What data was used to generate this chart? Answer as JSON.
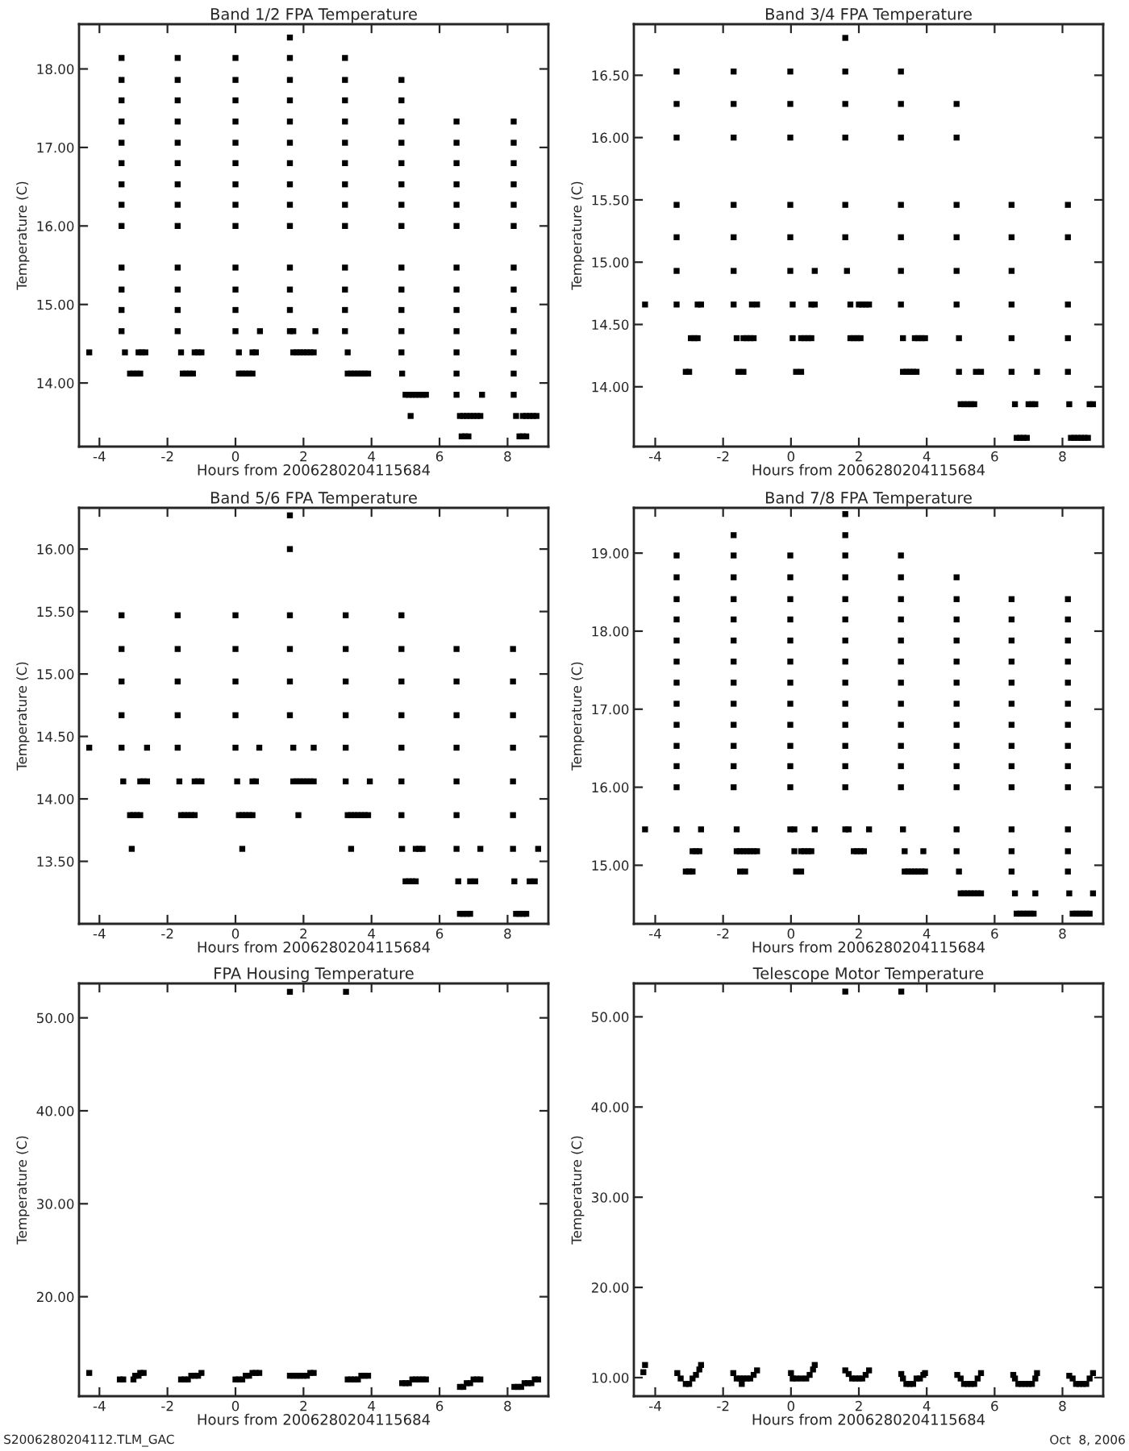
{
  "chart_data": [
    {
      "type": "scatter",
      "title": "Band 1/2 FPA Temperature",
      "xlabel": "Hours from 2006280204115684",
      "ylabel": "Temperature (C)",
      "marker": "square",
      "xlim": [
        -4.6,
        9.2
      ],
      "ylim": [
        13.19,
        18.57
      ],
      "xticks": [
        -4,
        -2,
        0,
        2,
        4,
        6,
        8
      ],
      "yticks": [
        {
          "value": 14,
          "label": "14.00"
        },
        {
          "value": 15,
          "label": "15.00"
        },
        {
          "value": 16,
          "label": "16.00"
        },
        {
          "value": 17,
          "label": "17.00"
        },
        {
          "value": 18,
          "label": "18.00"
        }
      ],
      "series": [
        {
          "color": "#000000",
          "x": [
            -4.3
          ],
          "values": [
            14.39
          ]
        },
        {
          "color": "#000000",
          "x": [
            -3.35,
            -3.35,
            -3.35,
            -3.35,
            -3.35,
            -3.35,
            -3.35,
            -3.35,
            -3.35,
            -3.35,
            -3.35,
            -3.35,
            -3.35,
            -3.25,
            -3.1,
            -3.0,
            -2.9,
            -2.8,
            -2.85,
            -2.75,
            -2.65
          ],
          "values": [
            18.14,
            17.86,
            17.6,
            17.33,
            17.06,
            16.8,
            16.53,
            16.27,
            16.0,
            15.47,
            15.19,
            14.93,
            14.66,
            14.39,
            14.12,
            14.12,
            14.12,
            14.12,
            14.39,
            14.39,
            14.39
          ]
        },
        {
          "color": "#000000",
          "x": [
            -1.7,
            -1.7,
            -1.7,
            -1.7,
            -1.7,
            -1.7,
            -1.7,
            -1.7,
            -1.7,
            -1.7,
            -1.7,
            -1.7,
            -1.7,
            -1.6,
            -1.55,
            -1.45,
            -1.35,
            -1.25,
            -1.2,
            -1.1,
            -1.0
          ],
          "values": [
            18.14,
            17.86,
            17.6,
            17.33,
            17.06,
            16.8,
            16.53,
            16.27,
            16.0,
            15.47,
            15.19,
            14.93,
            14.66,
            14.39,
            14.12,
            14.12,
            14.12,
            14.12,
            14.39,
            14.39,
            14.39
          ]
        },
        {
          "color": "#000000",
          "x": [
            0,
            0,
            0,
            0,
            0,
            0,
            0,
            0,
            0,
            0,
            0,
            0,
            0,
            0.1,
            0.1,
            0.2,
            0.3,
            0.4,
            0.5,
            0.5,
            0.6,
            0.72
          ],
          "values": [
            18.14,
            17.86,
            17.6,
            17.33,
            17.06,
            16.8,
            16.53,
            16.27,
            16.0,
            15.47,
            15.19,
            14.93,
            14.66,
            14.39,
            14.12,
            14.12,
            14.12,
            14.12,
            14.12,
            14.39,
            14.39,
            14.66
          ]
        },
        {
          "color": "#000000",
          "x": [
            1.6,
            1.6,
            1.6,
            1.6,
            1.6,
            1.6,
            1.6,
            1.6,
            1.6,
            1.6,
            1.6,
            1.6,
            1.6,
            1.6,
            1.7,
            1.7,
            1.8,
            1.9,
            2.0,
            2.1,
            2.2,
            2.3,
            2.35
          ],
          "values": [
            18.4,
            18.14,
            17.86,
            17.6,
            17.33,
            17.06,
            16.8,
            16.53,
            16.27,
            16.0,
            15.47,
            15.19,
            14.93,
            14.66,
            14.66,
            14.39,
            14.39,
            14.39,
            14.39,
            14.39,
            14.39,
            14.39,
            14.66
          ]
        },
        {
          "color": "#000000",
          "x": [
            3.22,
            3.22,
            3.22,
            3.22,
            3.22,
            3.22,
            3.22,
            3.22,
            3.22,
            3.22,
            3.22,
            3.22,
            3.22,
            3.3,
            3.3,
            3.4,
            3.5,
            3.6,
            3.7,
            3.8,
            3.9
          ],
          "values": [
            18.14,
            17.86,
            17.6,
            17.33,
            17.06,
            16.8,
            16.53,
            16.27,
            16.0,
            15.47,
            15.19,
            14.93,
            14.66,
            14.39,
            14.12,
            14.12,
            14.12,
            14.12,
            14.12,
            14.12,
            14.12
          ]
        },
        {
          "color": "#000000",
          "x": [
            4.88,
            4.88,
            4.88,
            4.88,
            4.88,
            4.88,
            4.88,
            4.88,
            4.88,
            4.88,
            4.88,
            4.88,
            4.88,
            4.9,
            5.0,
            5.1,
            5.2,
            5.3,
            5.4,
            5.5,
            5.6,
            5.15
          ],
          "values": [
            17.86,
            17.6,
            17.33,
            17.06,
            16.8,
            16.53,
            16.27,
            16.0,
            15.47,
            15.19,
            14.93,
            14.66,
            14.39,
            14.12,
            13.85,
            13.85,
            13.85,
            13.85,
            13.85,
            13.85,
            13.85,
            13.58
          ]
        },
        {
          "color": "#000000",
          "x": [
            6.5,
            6.5,
            6.5,
            6.5,
            6.5,
            6.5,
            6.5,
            6.5,
            6.5,
            6.5,
            6.5,
            6.5,
            6.5,
            6.6,
            6.7,
            6.8,
            6.9,
            7.0,
            7.1,
            7.2,
            7.25,
            6.65,
            6.75,
            6.85
          ],
          "values": [
            17.33,
            17.06,
            16.8,
            16.53,
            16.27,
            16.0,
            15.47,
            15.19,
            14.93,
            14.66,
            14.39,
            14.12,
            13.85,
            13.58,
            13.58,
            13.58,
            13.58,
            13.58,
            13.58,
            13.58,
            13.85,
            13.32,
            13.32,
            13.32
          ]
        },
        {
          "color": "#000000",
          "x": [
            8.18,
            8.18,
            8.18,
            8.18,
            8.18,
            8.18,
            8.18,
            8.18,
            8.18,
            8.18,
            8.18,
            8.18,
            8.18,
            8.25,
            8.45,
            8.55,
            8.65,
            8.75,
            8.85,
            8.35,
            8.45,
            8.55
          ],
          "values": [
            17.33,
            17.06,
            16.8,
            16.53,
            16.27,
            16.0,
            15.47,
            15.19,
            14.93,
            14.66,
            14.39,
            14.12,
            13.85,
            13.58,
            13.58,
            13.58,
            13.58,
            13.58,
            13.58,
            13.32,
            13.32,
            13.32
          ]
        }
      ]
    },
    {
      "type": "scatter",
      "title": "Band 3/4 FPA Temperature",
      "xlabel": "Hours from 2006280204115684",
      "ylabel": "Temperature (C)",
      "marker": "square",
      "xlim": [
        -4.63,
        9.2
      ],
      "ylim": [
        13.52,
        16.91
      ],
      "xticks": [
        -4,
        -2,
        0,
        2,
        4,
        6,
        8
      ],
      "yticks": [
        {
          "value": 14,
          "label": "14.00"
        },
        {
          "value": 14.5,
          "label": "14.50"
        },
        {
          "value": 15,
          "label": "15.00"
        },
        {
          "value": 15.5,
          "label": "15.50"
        },
        {
          "value": 16,
          "label": "16.00"
        },
        {
          "value": 16.5,
          "label": "16.50"
        }
      ],
      "series": [
        {
          "color": "#000000",
          "x": [
            -4.3
          ],
          "values": [
            14.66
          ]
        },
        {
          "color": "#000000",
          "x": [
            -3.37,
            -3.37,
            -3.37,
            -3.37,
            -3.37,
            -3.37,
            -3.37,
            -2.95,
            -2.85,
            -2.75,
            -3.1,
            -3.0,
            -2.75,
            -2.65
          ],
          "values": [
            16.53,
            16.27,
            16.0,
            15.46,
            15.2,
            14.93,
            14.66,
            14.39,
            14.39,
            14.39,
            14.12,
            14.12,
            14.66,
            14.66
          ]
        },
        {
          "color": "#000000",
          "x": [
            -1.69,
            -1.69,
            -1.69,
            -1.69,
            -1.69,
            -1.69,
            -1.69,
            -1.6,
            -1.4,
            -1.3,
            -1.2,
            -1.1,
            -1.55,
            -1.4,
            -1.15,
            -1.0
          ],
          "values": [
            16.53,
            16.27,
            16.0,
            15.46,
            15.2,
            14.93,
            14.66,
            14.39,
            14.39,
            14.39,
            14.39,
            14.39,
            14.12,
            14.12,
            14.66,
            14.66
          ]
        },
        {
          "color": "#000000",
          "x": [
            -0.02,
            -0.02,
            -0.02,
            -0.02,
            -0.02,
            -0.02,
            0.05,
            0.05,
            0.3,
            0.4,
            0.5,
            0.6,
            0.15,
            0.3,
            0.6,
            0.7,
            0.7
          ],
          "values": [
            16.53,
            16.27,
            16.0,
            15.46,
            15.2,
            14.93,
            14.66,
            14.39,
            14.39,
            14.39,
            14.39,
            14.39,
            14.12,
            14.12,
            14.66,
            14.66,
            14.93
          ]
        },
        {
          "color": "#000000",
          "x": [
            1.6,
            1.6,
            1.6,
            1.6,
            1.6,
            1.6,
            1.65,
            1.75,
            1.75,
            1.85,
            1.95,
            2.05,
            2.0,
            2.1,
            2.2,
            2.3
          ],
          "values": [
            16.8,
            16.53,
            16.27,
            16.0,
            15.46,
            15.2,
            14.93,
            14.66,
            14.39,
            14.39,
            14.39,
            14.39,
            14.66,
            14.66,
            14.66,
            14.66
          ]
        },
        {
          "color": "#000000",
          "x": [
            3.24,
            3.24,
            3.24,
            3.24,
            3.24,
            3.24,
            3.24,
            3.3,
            3.3,
            3.4,
            3.5,
            3.6,
            3.7,
            3.65,
            3.75,
            3.85,
            3.95
          ],
          "values": [
            16.53,
            16.27,
            16.0,
            15.46,
            15.2,
            14.93,
            14.66,
            14.39,
            14.12,
            14.12,
            14.12,
            14.12,
            14.12,
            14.39,
            14.39,
            14.39,
            14.39
          ]
        },
        {
          "color": "#000000",
          "x": [
            4.88,
            4.88,
            4.88,
            4.88,
            4.88,
            4.88,
            4.95,
            4.95,
            5.0,
            5.1,
            5.2,
            5.3,
            5.4,
            5.45,
            5.6
          ],
          "values": [
            16.27,
            16.0,
            15.46,
            15.2,
            14.93,
            14.66,
            14.39,
            14.12,
            13.86,
            13.86,
            13.86,
            13.86,
            13.86,
            14.12,
            14.12
          ]
        },
        {
          "color": "#000000",
          "x": [
            6.5,
            6.5,
            6.5,
            6.5,
            6.5,
            6.5,
            6.6,
            6.65,
            6.75,
            6.85,
            6.95,
            7.0,
            7.1,
            7.2,
            7.25
          ],
          "values": [
            15.46,
            15.2,
            14.93,
            14.66,
            14.39,
            14.12,
            13.86,
            13.59,
            13.59,
            13.59,
            13.59,
            13.86,
            13.86,
            13.86,
            14.12
          ]
        },
        {
          "color": "#000000",
          "x": [
            8.16,
            8.16,
            8.16,
            8.16,
            8.16,
            8.2,
            8.25,
            8.35,
            8.45,
            8.55,
            8.65,
            8.75,
            8.8,
            8.9
          ],
          "values": [
            15.46,
            15.2,
            14.66,
            14.39,
            14.12,
            13.86,
            13.59,
            13.59,
            13.59,
            13.59,
            13.59,
            13.59,
            13.86,
            13.86
          ]
        }
      ]
    },
    {
      "type": "scatter",
      "title": "Band 5/6 FPA Temperature",
      "xlabel": "Hours from 2006280204115684",
      "ylabel": "Temperature (C)",
      "marker": "square",
      "xlim": [
        -4.6,
        9.2
      ],
      "ylim": [
        13.0,
        16.33
      ],
      "xticks": [
        -4,
        -2,
        0,
        2,
        4,
        6,
        8
      ],
      "yticks": [
        {
          "value": 13.5,
          "label": "13.50"
        },
        {
          "value": 14,
          "label": "14.00"
        },
        {
          "value": 14.5,
          "label": "14.50"
        },
        {
          "value": 15,
          "label": "15.00"
        },
        {
          "value": 15.5,
          "label": "15.50"
        },
        {
          "value": 16,
          "label": "16.00"
        }
      ],
      "series": [
        {
          "color": "#000000",
          "x": [
            -4.3
          ],
          "values": [
            14.41
          ]
        },
        {
          "color": "#000000",
          "x": [
            -3.35,
            -3.35,
            -3.35,
            -3.35,
            -3.35,
            -3.3,
            -2.8,
            -2.7,
            -2.6,
            -2.6,
            -3.1,
            -3.0,
            -2.9,
            -2.8,
            -3.05
          ],
          "values": [
            15.47,
            15.2,
            14.94,
            14.67,
            14.41,
            14.14,
            14.14,
            14.14,
            14.14,
            14.41,
            13.87,
            13.87,
            13.87,
            13.87,
            13.6
          ]
        },
        {
          "color": "#000000",
          "x": [
            -1.7,
            -1.7,
            -1.7,
            -1.7,
            -1.7,
            -1.65,
            -1.6,
            -1.5,
            -1.4,
            -1.3,
            -1.2,
            -1.2,
            -1.1,
            -1.0
          ],
          "values": [
            15.47,
            15.2,
            14.94,
            14.67,
            14.41,
            14.14,
            13.87,
            13.87,
            13.87,
            13.87,
            13.87,
            14.14,
            14.14,
            14.14
          ]
        },
        {
          "color": "#000000",
          "x": [
            0,
            0,
            0,
            0,
            0,
            0.05,
            0.1,
            0.2,
            0.3,
            0.4,
            0.5,
            0.5,
            0.6,
            0.2,
            0.7
          ],
          "values": [
            15.47,
            15.2,
            14.94,
            14.67,
            14.41,
            14.14,
            13.87,
            13.87,
            13.87,
            13.87,
            13.87,
            14.14,
            14.14,
            13.6,
            14.41
          ]
        },
        {
          "color": "#000000",
          "x": [
            1.6,
            1.6,
            1.6,
            1.6,
            1.6,
            1.6,
            1.7,
            1.7,
            1.8,
            1.9,
            2.0,
            2.1,
            2.2,
            2.3,
            1.85,
            2.3
          ],
          "values": [
            16.27,
            16.0,
            15.47,
            15.2,
            14.94,
            14.67,
            14.41,
            14.14,
            14.14,
            14.14,
            14.14,
            14.14,
            14.14,
            14.14,
            13.87,
            14.41
          ]
        },
        {
          "color": "#000000",
          "x": [
            3.24,
            3.24,
            3.24,
            3.24,
            3.24,
            3.24,
            3.3,
            3.4,
            3.5,
            3.6,
            3.7,
            3.8,
            3.9,
            3.4,
            3.95
          ],
          "values": [
            15.47,
            15.2,
            14.94,
            14.67,
            14.41,
            14.14,
            13.87,
            13.87,
            13.87,
            13.87,
            13.87,
            13.87,
            13.87,
            13.6,
            14.14
          ]
        },
        {
          "color": "#000000",
          "x": [
            4.88,
            4.88,
            4.88,
            4.88,
            4.88,
            4.88,
            4.88,
            4.9,
            5.0,
            5.1,
            5.2,
            5.3,
            5.3,
            5.4,
            5.5
          ],
          "values": [
            15.47,
            15.2,
            14.94,
            14.67,
            14.41,
            14.14,
            13.87,
            13.6,
            13.34,
            13.34,
            13.34,
            13.34,
            13.6,
            13.6,
            13.6
          ]
        },
        {
          "color": "#000000",
          "x": [
            6.5,
            6.5,
            6.5,
            6.5,
            6.5,
            6.5,
            6.5,
            6.55,
            6.9,
            7.05,
            7.2,
            6.6,
            6.7,
            6.8,
            6.9
          ],
          "values": [
            15.2,
            14.94,
            14.67,
            14.41,
            14.14,
            13.87,
            13.6,
            13.34,
            13.34,
            13.34,
            13.6,
            13.08,
            13.08,
            13.08,
            13.08
          ]
        },
        {
          "color": "#000000",
          "x": [
            8.16,
            8.16,
            8.16,
            8.16,
            8.16,
            8.16,
            8.16,
            8.2,
            8.65,
            8.8,
            8.9,
            8.25,
            8.35,
            8.45,
            8.55
          ],
          "values": [
            15.2,
            14.94,
            14.67,
            14.41,
            14.14,
            13.87,
            13.6,
            13.34,
            13.34,
            13.34,
            13.6,
            13.08,
            13.08,
            13.08,
            13.08
          ]
        }
      ]
    },
    {
      "type": "scatter",
      "title": "Band 7/8 FPA Temperature",
      "xlabel": "Hours from 2006280204115684",
      "ylabel": "Temperature (C)",
      "marker": "square",
      "xlim": [
        -4.63,
        9.2
      ],
      "ylim": [
        14.25,
        19.58
      ],
      "xticks": [
        -4,
        -2,
        0,
        2,
        4,
        6,
        8
      ],
      "yticks": [
        {
          "value": 15,
          "label": "15.00"
        },
        {
          "value": 16,
          "label": "16.00"
        },
        {
          "value": 17,
          "label": "17.00"
        },
        {
          "value": 18,
          "label": "18.00"
        },
        {
          "value": 19,
          "label": "19.00"
        }
      ],
      "series": [
        {
          "color": "#000000",
          "x": [
            -4.3
          ],
          "values": [
            15.46
          ]
        },
        {
          "color": "#000000",
          "x": [
            -3.37,
            -3.37,
            -3.37,
            -3.37,
            -3.37,
            -3.37,
            -3.37,
            -3.37,
            -3.37,
            -3.37,
            -3.37,
            -3.37,
            -3.37,
            -2.9,
            -2.8,
            -2.7,
            -3.1,
            -3.0,
            -2.9,
            -2.65
          ],
          "values": [
            18.97,
            18.69,
            18.41,
            18.15,
            17.88,
            17.61,
            17.34,
            17.07,
            16.8,
            16.53,
            16.27,
            16.0,
            15.46,
            15.18,
            15.18,
            15.18,
            14.92,
            14.92,
            14.92,
            15.46
          ]
        },
        {
          "color": "#000000",
          "x": [
            -1.69,
            -1.69,
            -1.69,
            -1.69,
            -1.69,
            -1.69,
            -1.69,
            -1.69,
            -1.69,
            -1.69,
            -1.69,
            -1.69,
            -1.69,
            -1.6,
            -1.6,
            -1.5,
            -1.4,
            -1.3,
            -1.2,
            -1.1,
            -1.0,
            -1.5,
            -1.35
          ],
          "values": [
            19.23,
            18.97,
            18.69,
            18.41,
            18.15,
            17.88,
            17.61,
            17.34,
            17.07,
            16.8,
            16.53,
            16.27,
            16.0,
            15.46,
            15.18,
            15.18,
            15.18,
            15.18,
            15.18,
            15.18,
            15.18,
            14.92,
            14.92
          ]
        },
        {
          "color": "#000000",
          "x": [
            -0.02,
            -0.02,
            -0.02,
            -0.02,
            -0.02,
            -0.02,
            -0.02,
            -0.02,
            -0.02,
            -0.02,
            -0.02,
            -0.02,
            -0.02,
            0.1,
            0.1,
            0.3,
            0.4,
            0.5,
            0.6,
            0.15,
            0.3,
            0.7
          ],
          "values": [
            18.97,
            18.69,
            18.41,
            18.15,
            17.88,
            17.61,
            17.34,
            17.07,
            16.8,
            16.53,
            16.27,
            16.0,
            15.46,
            15.46,
            15.18,
            15.18,
            15.18,
            15.18,
            15.18,
            14.92,
            14.92,
            15.46
          ]
        },
        {
          "color": "#000000",
          "x": [
            1.6,
            1.6,
            1.6,
            1.6,
            1.6,
            1.6,
            1.6,
            1.6,
            1.6,
            1.6,
            1.6,
            1.6,
            1.6,
            1.6,
            1.6,
            1.7,
            1.85,
            1.95,
            2.05,
            2.15,
            2.3
          ],
          "values": [
            19.5,
            19.23,
            18.97,
            18.69,
            18.41,
            18.15,
            17.88,
            17.61,
            17.34,
            17.07,
            16.8,
            16.53,
            16.27,
            16.0,
            15.46,
            15.46,
            15.18,
            15.18,
            15.18,
            15.18,
            15.46
          ]
        },
        {
          "color": "#000000",
          "x": [
            3.24,
            3.24,
            3.24,
            3.24,
            3.24,
            3.24,
            3.24,
            3.24,
            3.24,
            3.24,
            3.24,
            3.24,
            3.3,
            3.35,
            3.35,
            3.45,
            3.55,
            3.65,
            3.75,
            3.85,
            3.95,
            3.9
          ],
          "values": [
            18.97,
            18.69,
            18.41,
            18.15,
            17.88,
            17.61,
            17.34,
            17.07,
            16.8,
            16.53,
            16.27,
            16.0,
            15.46,
            15.18,
            14.92,
            14.92,
            14.92,
            14.92,
            14.92,
            14.92,
            14.92,
            15.18
          ]
        },
        {
          "color": "#000000",
          "x": [
            4.88,
            4.88,
            4.88,
            4.88,
            4.88,
            4.88,
            4.88,
            4.88,
            4.88,
            4.88,
            4.88,
            4.88,
            4.88,
            4.95,
            5.0,
            5.1,
            5.2,
            5.3,
            5.4,
            5.5,
            5.6
          ],
          "values": [
            18.69,
            18.41,
            18.15,
            17.88,
            17.61,
            17.34,
            17.07,
            16.8,
            16.53,
            16.27,
            16.0,
            15.46,
            15.18,
            14.92,
            14.64,
            14.64,
            14.64,
            14.64,
            14.64,
            14.64,
            14.64
          ]
        },
        {
          "color": "#000000",
          "x": [
            6.5,
            6.5,
            6.5,
            6.5,
            6.5,
            6.5,
            6.5,
            6.5,
            6.5,
            6.5,
            6.5,
            6.5,
            6.5,
            6.6,
            6.65,
            6.75,
            6.85,
            6.95,
            7.05,
            7.15,
            7.2
          ],
          "values": [
            18.41,
            18.15,
            17.88,
            17.61,
            17.34,
            17.07,
            16.8,
            16.53,
            16.27,
            16.0,
            15.46,
            15.18,
            14.92,
            14.64,
            14.38,
            14.38,
            14.38,
            14.38,
            14.38,
            14.38,
            14.64
          ]
        },
        {
          "color": "#000000",
          "x": [
            8.16,
            8.16,
            8.16,
            8.16,
            8.16,
            8.16,
            8.16,
            8.16,
            8.16,
            8.16,
            8.16,
            8.16,
            8.16,
            8.2,
            8.3,
            8.4,
            8.5,
            8.6,
            8.7,
            8.8,
            8.9
          ],
          "values": [
            18.41,
            18.15,
            17.88,
            17.61,
            17.34,
            17.07,
            16.8,
            16.53,
            16.27,
            16.0,
            15.46,
            15.18,
            14.92,
            14.64,
            14.38,
            14.38,
            14.38,
            14.38,
            14.38,
            14.38,
            14.64
          ]
        }
      ]
    },
    {
      "type": "scatter",
      "title": "FPA Housing Temperature",
      "xlabel": "Hours from 2006280204115684",
      "ylabel": "Temperature (C)",
      "marker": "square",
      "xlim": [
        -4.6,
        9.2
      ],
      "ylim": [
        9.3,
        53.7
      ],
      "xticks": [
        -4,
        -2,
        0,
        2,
        4,
        6,
        8
      ],
      "yticks": [
        {
          "value": 20,
          "label": "20.00"
        },
        {
          "value": 30,
          "label": "30.00"
        },
        {
          "value": 40,
          "label": "40.00"
        },
        {
          "value": 50,
          "label": "50.00"
        }
      ],
      "annotations": [
        "S2006280204112.TLM_GAC"
      ],
      "series": [
        {
          "color": "#000000",
          "x": [
            -4.3,
            -3.4,
            -3.3,
            -3.0,
            -2.95,
            -2.85,
            -2.8,
            -2.7,
            -1.6,
            -1.5,
            -1.4,
            -1.3,
            -1.2,
            -1.1,
            -1.0,
            0.0,
            0.1,
            0.2,
            0.3,
            0.4,
            0.5,
            0.6,
            0.7,
            1.6,
            1.7,
            1.8,
            1.9,
            2.0,
            2.1,
            2.2,
            2.3,
            1.6,
            3.25,
            3.3,
            3.4,
            3.5,
            3.6,
            3.7,
            3.8,
            3.9,
            4.9,
            5.0,
            5.1,
            5.2,
            5.3,
            5.4,
            5.5,
            5.6,
            6.6,
            6.7,
            6.8,
            6.9,
            7.0,
            7.1,
            7.2,
            8.2,
            8.3,
            8.4,
            8.5,
            8.6,
            8.7,
            8.8,
            8.9
          ],
          "values": [
            11.8,
            11.1,
            11.1,
            11.1,
            11.5,
            11.5,
            11.8,
            11.8,
            11.1,
            11.1,
            11.1,
            11.5,
            11.5,
            11.5,
            11.8,
            11.1,
            11.1,
            11.1,
            11.5,
            11.5,
            11.8,
            11.8,
            11.8,
            11.5,
            11.5,
            11.5,
            11.5,
            11.5,
            11.5,
            11.8,
            11.8,
            52.8,
            52.8,
            11.1,
            11.1,
            11.1,
            11.1,
            11.5,
            11.5,
            11.5,
            10.7,
            10.7,
            10.7,
            11.1,
            11.1,
            11.1,
            11.1,
            11.1,
            10.3,
            10.3,
            10.7,
            10.7,
            11.1,
            11.1,
            11.1,
            10.3,
            10.3,
            10.3,
            10.7,
            10.7,
            10.7,
            11.1,
            11.1
          ]
        }
      ]
    },
    {
      "type": "scatter",
      "title": "Telescope Motor Temperature",
      "xlabel": "Hours from 2006280204115684",
      "ylabel": "Temperature (C)",
      "marker": "square",
      "xlim": [
        -4.63,
        9.2
      ],
      "ylim": [
        7.94,
        53.7
      ],
      "xticks": [
        -4,
        -2,
        0,
        2,
        4,
        6,
        8
      ],
      "yticks": [
        {
          "value": 10,
          "label": "10.00"
        },
        {
          "value": 20,
          "label": "20.00"
        },
        {
          "value": 30,
          "label": "30.00"
        },
        {
          "value": 40,
          "label": "40.00"
        },
        {
          "value": 50,
          "label": "50.00"
        }
      ],
      "annotations": [
        "Oct  8, 2006"
      ],
      "series": [
        {
          "color": "#000000",
          "x": [
            -4.35,
            -4.3,
            -3.35,
            -3.25,
            -3.1,
            -3.0,
            -2.9,
            -2.8,
            -2.7,
            -2.65,
            -1.7,
            -1.6,
            -1.5,
            -1.45,
            -1.4,
            -1.3,
            -1.2,
            -1.1,
            -1.0,
            0.0,
            0.05,
            0.15,
            0.3,
            0.45,
            0.55,
            0.65,
            0.7,
            1.6,
            1.7,
            1.8,
            1.9,
            2.0,
            2.1,
            2.2,
            2.3,
            1.6,
            3.25,
            3.25,
            3.3,
            3.4,
            3.5,
            3.6,
            3.7,
            3.8,
            3.9,
            3.95,
            4.9,
            5.0,
            5.1,
            5.2,
            5.3,
            5.4,
            5.5,
            5.6,
            6.55,
            6.6,
            6.7,
            6.8,
            6.9,
            7.0,
            7.1,
            7.2,
            7.25,
            8.2,
            8.3,
            8.4,
            8.5,
            8.6,
            8.7,
            8.8,
            8.9
          ],
          "values": [
            10.6,
            11.4,
            10.5,
            9.9,
            9.3,
            9.3,
            9.9,
            10.3,
            10.9,
            11.4,
            10.5,
            9.9,
            9.9,
            9.3,
            9.9,
            9.9,
            9.9,
            10.3,
            10.8,
            10.5,
            9.9,
            9.9,
            9.9,
            9.9,
            10.3,
            10.9,
            11.4,
            10.8,
            10.4,
            9.9,
            9.9,
            9.9,
            9.9,
            10.3,
            10.8,
            52.8,
            52.8,
            10.4,
            9.9,
            9.3,
            9.3,
            9.3,
            9.9,
            9.9,
            10.3,
            10.5,
            10.3,
            9.9,
            9.3,
            9.3,
            9.3,
            9.3,
            9.9,
            10.5,
            10.3,
            9.9,
            9.3,
            9.3,
            9.3,
            9.3,
            9.3,
            9.9,
            10.5,
            10.2,
            9.9,
            9.3,
            9.3,
            9.3,
            9.3,
            9.9,
            10.5
          ]
        }
      ]
    }
  ]
}
